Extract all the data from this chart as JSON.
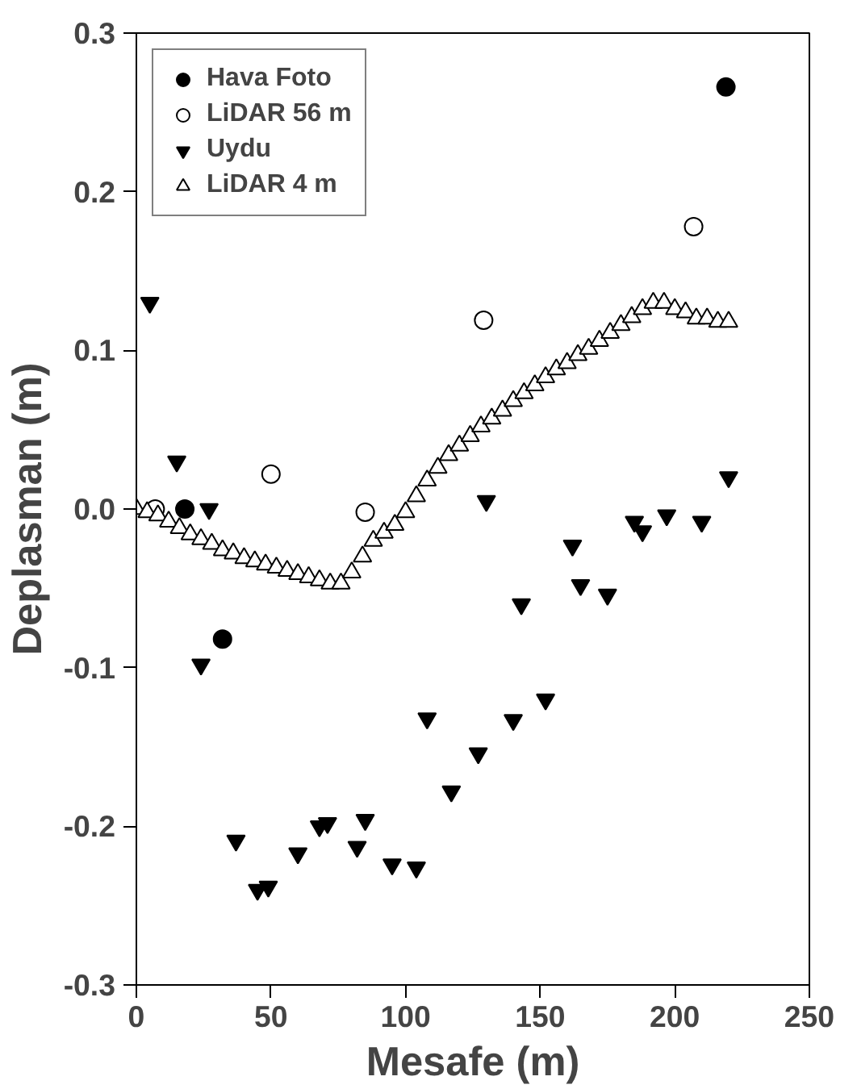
{
  "chart_data": {
    "type": "scatter",
    "xlabel": "Mesafe (m)",
    "ylabel": "Deplasman (m)",
    "xlim": [
      0,
      250
    ],
    "xticks": [
      0,
      50,
      100,
      150,
      200,
      250
    ],
    "ylim": [
      -0.3,
      0.3
    ],
    "yticks": [
      {
        "value": -0.3,
        "label": "-0.3"
      },
      {
        "value": -0.2,
        "label": "-0.2"
      },
      {
        "value": -0.1,
        "label": "-0.1"
      },
      {
        "value": 0,
        "label": "0.0"
      },
      {
        "value": 0.1,
        "label": "0.1"
      },
      {
        "value": 0.2,
        "label": "0.2"
      },
      {
        "value": 0.3,
        "label": "0.3"
      }
    ],
    "grid": false,
    "legend": "top left",
    "series": [
      {
        "name": "Hava Foto",
        "color": "#000000",
        "marker": "circle",
        "x": [
          18,
          32,
          219
        ],
        "values": [
          0.0,
          -0.082,
          0.266
        ]
      },
      {
        "name": "LiDAR 56 m",
        "color": "#ffffff",
        "marker": "circle",
        "x": [
          7,
          50,
          85,
          129,
          207
        ],
        "values": [
          0.0,
          0.022,
          -0.002,
          0.119,
          0.178
        ]
      },
      {
        "name": "Uydu",
        "color": "#000000",
        "x": [
          5,
          15,
          27,
          24,
          37,
          45,
          49,
          60,
          68,
          71,
          82,
          85,
          95,
          104,
          108,
          117,
          127,
          130,
          140,
          143,
          152,
          162,
          165,
          175,
          185,
          188,
          197,
          210,
          220
        ],
        "values": [
          0.13,
          0.03,
          0.0,
          -0.098,
          -0.209,
          -0.24,
          -0.238,
          -0.217,
          -0.2,
          -0.198,
          -0.213,
          -0.196,
          -0.224,
          -0.226,
          -0.132,
          -0.178,
          -0.154,
          0.005,
          -0.133,
          -0.06,
          -0.12,
          -0.023,
          -0.048,
          -0.054,
          -0.008,
          -0.014,
          -0.004,
          -0.008,
          0.02
        ]
      },
      {
        "name": "LiDAR 4 m",
        "color": "#ffffff",
        "marker": "triangle",
        "x": [
          0,
          4,
          8,
          12,
          16,
          20,
          24,
          28,
          32,
          36,
          40,
          44,
          48,
          52,
          56,
          60,
          64,
          68,
          72,
          76,
          80,
          84,
          88,
          92,
          96,
          100,
          104,
          108,
          112,
          116,
          120,
          124,
          128,
          132,
          136,
          140,
          144,
          148,
          152,
          156,
          160,
          164,
          168,
          172,
          176,
          180,
          184,
          188,
          192,
          196,
          200,
          204,
          208,
          212,
          216,
          220
        ],
        "values": [
          0.0,
          -0.002,
          -0.004,
          -0.008,
          -0.012,
          -0.016,
          -0.019,
          -0.022,
          -0.026,
          -0.028,
          -0.031,
          -0.033,
          -0.035,
          -0.037,
          -0.039,
          -0.041,
          -0.043,
          -0.045,
          -0.047,
          -0.047,
          -0.04,
          -0.03,
          -0.02,
          -0.015,
          -0.01,
          -0.002,
          0.008,
          0.018,
          0.026,
          0.034,
          0.04,
          0.046,
          0.052,
          0.057,
          0.062,
          0.068,
          0.073,
          0.078,
          0.083,
          0.088,
          0.092,
          0.097,
          0.101,
          0.106,
          0.111,
          0.116,
          0.121,
          0.126,
          0.13,
          0.13,
          0.126,
          0.124,
          0.12,
          0.12,
          0.118,
          0.118
        ]
      }
    ]
  }
}
